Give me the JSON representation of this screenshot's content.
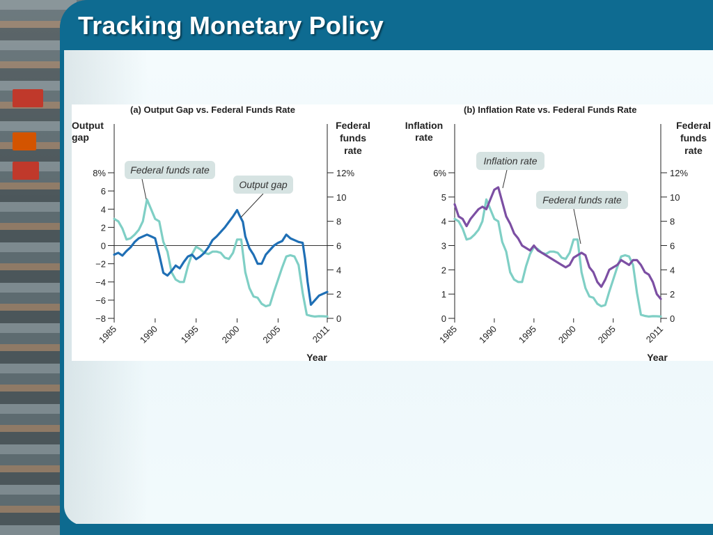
{
  "slide": {
    "title": "Tracking Monetary Policy"
  },
  "colors": {
    "header_blue": "#0e6b91",
    "output_gap_line": "#1f6fb5",
    "fed_funds_line": "#7fcfc5",
    "inflation_line": "#7c4fa3",
    "callout_bg": "#d6e3e2"
  },
  "chart_data": [
    {
      "type": "line",
      "title": "(a) Output Gap vs. Federal Funds Rate",
      "ylabel_left": "Output gap",
      "ylabel_right": "Federal funds rate",
      "xlabel": "Year",
      "x_ticks": [
        "1985",
        "1990",
        "1995",
        "2000",
        "2005",
        "2011"
      ],
      "xlim": [
        1985,
        2011
      ],
      "ylim_left": [
        -8,
        8
      ],
      "ylim_right": [
        0,
        12
      ],
      "y_ticks_left": [
        "8%",
        "6",
        "4",
        "2",
        "0",
        "−2",
        "−4",
        "−6",
        "−8"
      ],
      "y_ticks_right": [
        "12%",
        "10",
        "8",
        "6",
        "4",
        "2",
        "0"
      ],
      "zero_line": true,
      "annotations": [
        {
          "text": "Federal funds rate"
        },
        {
          "text": "Output gap"
        }
      ],
      "series": [
        {
          "name": "Output gap",
          "axis": "left",
          "x": [
            1985,
            1985.5,
            1986,
            1986.5,
            1987,
            1987.5,
            1988,
            1988.5,
            1989,
            1989.5,
            1990,
            1990.5,
            1991,
            1991.5,
            1992,
            1992.5,
            1993,
            1993.5,
            1994,
            1994.5,
            1995,
            1995.5,
            1996,
            1996.5,
            1997,
            1997.5,
            1998,
            1998.5,
            1999,
            1999.5,
            2000,
            2000.3,
            2000.7,
            2001,
            2001.5,
            2002,
            2002.5,
            2003,
            2003.5,
            2004,
            2004.5,
            2005,
            2005.5,
            2006,
            2006.5,
            2007,
            2007.5,
            2008,
            2008.3,
            2008.6,
            2009,
            2009.5,
            2010,
            2010.5,
            2011
          ],
          "y": [
            -1.0,
            -0.8,
            -1.1,
            -0.6,
            -0.2,
            0.4,
            0.8,
            1.0,
            1.2,
            1.0,
            0.8,
            -1.0,
            -3.0,
            -3.3,
            -2.8,
            -2.2,
            -2.5,
            -1.8,
            -1.2,
            -1.0,
            -1.5,
            -1.2,
            -0.8,
            -0.2,
            0.6,
            1.0,
            1.5,
            2.0,
            2.6,
            3.2,
            3.9,
            3.3,
            2.6,
            1.0,
            -0.3,
            -1.0,
            -2.0,
            -2.0,
            -1.0,
            -0.5,
            0.0,
            0.3,
            0.5,
            1.2,
            0.8,
            0.6,
            0.4,
            0.3,
            -1.5,
            -4.0,
            -6.5,
            -6.0,
            -5.5,
            -5.3,
            -5.1
          ]
        },
        {
          "name": "Federal funds rate",
          "axis": "right",
          "x": [
            1985,
            1985.5,
            1986,
            1986.5,
            1987,
            1987.5,
            1988,
            1988.5,
            1989,
            1989.5,
            1990,
            1990.5,
            1991,
            1991.5,
            1992,
            1992.5,
            1993,
            1993.5,
            1994,
            1994.5,
            1995,
            1995.5,
            1996,
            1996.5,
            1997,
            1997.5,
            1998,
            1998.5,
            1999,
            1999.5,
            2000,
            2000.5,
            2001,
            2001.5,
            2002,
            2002.5,
            2003,
            2003.5,
            2004,
            2004.5,
            2005,
            2005.5,
            2006,
            2006.5,
            2007,
            2007.5,
            2008,
            2008.5,
            2009,
            2009.5,
            2010,
            2010.5,
            2011
          ],
          "y": [
            8.2,
            8.0,
            7.4,
            6.5,
            6.6,
            6.9,
            7.3,
            8.0,
            9.8,
            9.0,
            8.2,
            8.0,
            6.3,
            5.5,
            3.8,
            3.2,
            3.0,
            3.0,
            4.3,
            5.3,
            5.9,
            5.7,
            5.4,
            5.3,
            5.5,
            5.5,
            5.4,
            5.0,
            4.9,
            5.4,
            6.5,
            6.5,
            3.8,
            2.5,
            1.8,
            1.7,
            1.2,
            1.0,
            1.1,
            2.2,
            3.2,
            4.2,
            5.1,
            5.2,
            5.1,
            4.4,
            2.1,
            0.3,
            0.2,
            0.15,
            0.18,
            0.17,
            0.15
          ]
        }
      ]
    },
    {
      "type": "line",
      "title": "(b) Inflation Rate vs. Federal Funds Rate",
      "ylabel_left": "Inflation rate",
      "ylabel_right": "Federal funds rate",
      "xlabel": "Year",
      "x_ticks": [
        "1985",
        "1990",
        "1995",
        "2000",
        "2005",
        "2011"
      ],
      "xlim": [
        1985,
        2011
      ],
      "ylim_left": [
        0,
        6
      ],
      "ylim_right": [
        0,
        12
      ],
      "y_ticks_left": [
        "6%",
        "5",
        "4",
        "3",
        "2",
        "1",
        "0"
      ],
      "y_ticks_right": [
        "12%",
        "10",
        "8",
        "6",
        "4",
        "2",
        "0"
      ],
      "annotations": [
        {
          "text": "Inflation rate"
        },
        {
          "text": "Federal funds rate"
        }
      ],
      "series": [
        {
          "name": "Inflation rate",
          "axis": "left",
          "x": [
            1985,
            1985.5,
            1986,
            1986.5,
            1987,
            1987.5,
            1988,
            1988.5,
            1989,
            1989.5,
            1990,
            1990.5,
            1991,
            1991.5,
            1992,
            1992.5,
            1993,
            1993.5,
            1994,
            1994.5,
            1995,
            1995.5,
            1996,
            1996.5,
            1997,
            1997.5,
            1998,
            1998.5,
            1999,
            1999.5,
            2000,
            2000.5,
            2001,
            2001.5,
            2002,
            2002.5,
            2003,
            2003.5,
            2004,
            2004.5,
            2005,
            2005.5,
            2006,
            2006.5,
            2007,
            2007.5,
            2008,
            2008.5,
            2009,
            2009.5,
            2010,
            2010.5,
            2011
          ],
          "y": [
            4.7,
            4.2,
            4.1,
            3.8,
            4.1,
            4.3,
            4.5,
            4.6,
            4.5,
            4.9,
            5.3,
            5.4,
            4.8,
            4.2,
            3.9,
            3.5,
            3.3,
            3.0,
            2.9,
            2.8,
            3.0,
            2.8,
            2.7,
            2.6,
            2.5,
            2.4,
            2.3,
            2.2,
            2.1,
            2.2,
            2.5,
            2.6,
            2.7,
            2.6,
            2.1,
            1.9,
            1.5,
            1.3,
            1.6,
            2.0,
            2.1,
            2.2,
            2.4,
            2.3,
            2.2,
            2.4,
            2.4,
            2.2,
            1.9,
            1.8,
            1.5,
            1.0,
            0.8
          ]
        },
        {
          "name": "Federal funds rate",
          "axis": "right",
          "x": [
            1985,
            1985.5,
            1986,
            1986.5,
            1987,
            1987.5,
            1988,
            1988.5,
            1989,
            1989.5,
            1990,
            1990.5,
            1991,
            1991.5,
            1992,
            1992.5,
            1993,
            1993.5,
            1994,
            1994.5,
            1995,
            1995.5,
            1996,
            1996.5,
            1997,
            1997.5,
            1998,
            1998.5,
            1999,
            1999.5,
            2000,
            2000.5,
            2001,
            2001.5,
            2002,
            2002.5,
            2003,
            2003.5,
            2004,
            2004.5,
            2005,
            2005.5,
            2006,
            2006.5,
            2007,
            2007.5,
            2008,
            2008.5,
            2009,
            2009.5,
            2010,
            2010.5,
            2011
          ],
          "y": [
            8.2,
            8.0,
            7.4,
            6.5,
            6.6,
            6.9,
            7.3,
            8.0,
            9.8,
            9.0,
            8.2,
            8.0,
            6.3,
            5.5,
            3.8,
            3.2,
            3.0,
            3.0,
            4.3,
            5.3,
            5.9,
            5.7,
            5.4,
            5.3,
            5.5,
            5.5,
            5.4,
            5.0,
            4.9,
            5.4,
            6.5,
            6.5,
            3.8,
            2.5,
            1.8,
            1.7,
            1.2,
            1.0,
            1.1,
            2.2,
            3.2,
            4.2,
            5.1,
            5.2,
            5.1,
            4.4,
            2.1,
            0.3,
            0.2,
            0.15,
            0.18,
            0.17,
            0.15
          ]
        }
      ]
    }
  ]
}
